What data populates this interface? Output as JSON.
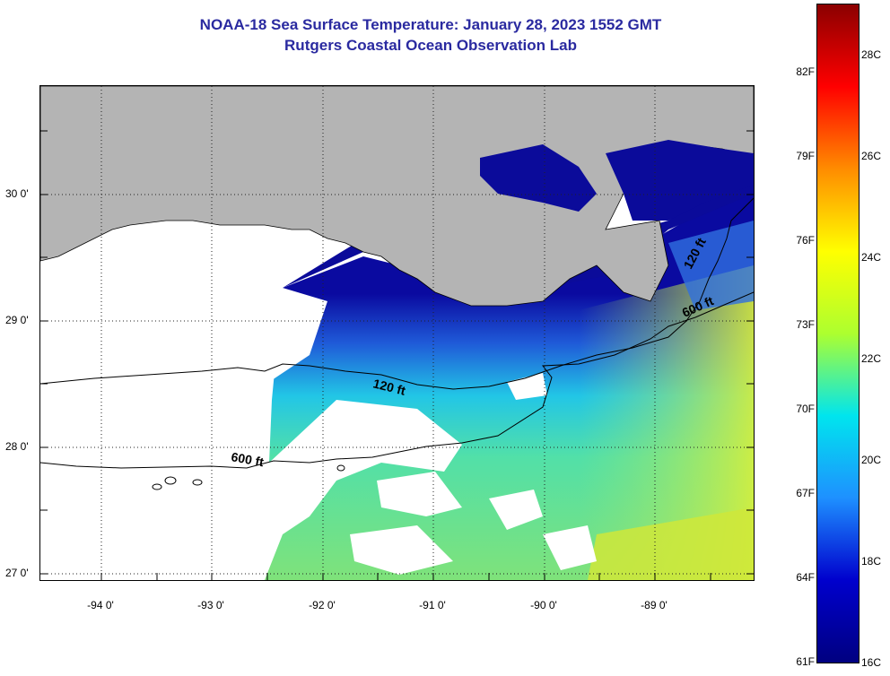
{
  "header": {
    "title": "NOAA-18 Sea Surface Temperature:  January 28, 2023 1552 GMT",
    "subtitle": "Rutgers Coastal Ocean Observation Lab"
  },
  "map": {
    "latitude_labels": [
      "30 0'",
      "29 0'",
      "28 0'",
      "27 0'"
    ],
    "longitude_labels": [
      "-94 0'",
      "-93 0'",
      "-92 0'",
      "-91 0'",
      "-90 0'",
      "-89 0'"
    ],
    "grid": "dotted",
    "land_color": "#b4b4b4",
    "no_data_color": "#ffffff",
    "contours": [
      {
        "label": "120 ft"
      },
      {
        "label": "600 ft"
      }
    ]
  },
  "colorbar": {
    "fahrenheit_labels": [
      "82F",
      "79F",
      "76F",
      "73F",
      "70F",
      "67F",
      "64F",
      "61F"
    ],
    "celsius_labels": [
      "28C",
      "26C",
      "24C",
      "22C",
      "20C",
      "18C",
      "16C"
    ],
    "colors": [
      "#8b0000",
      "#ff0000",
      "#ff8c00",
      "#ffff00",
      "#adff2f",
      "#00e5ee",
      "#1e90ff",
      "#0000cd",
      "#000080"
    ]
  }
}
